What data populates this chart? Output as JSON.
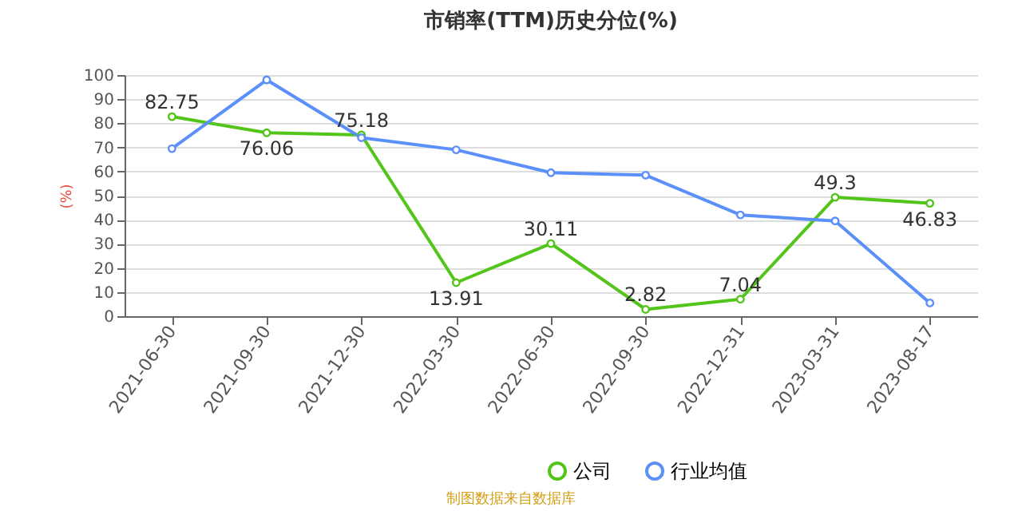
{
  "chart_data": {
    "type": "line",
    "title": "市销率(TTM)历史分位(%)",
    "ylabel": "(%)",
    "categories": [
      "2021-06-30",
      "2021-09-30",
      "2021-12-30",
      "2022-03-30",
      "2022-06-30",
      "2022-09-30",
      "2022-12-31",
      "2023-03-31",
      "2023-08-17"
    ],
    "series": [
      {
        "name": "公司",
        "color": "#52c41a",
        "values": [
          82.75,
          76.06,
          75.18,
          13.91,
          30.11,
          2.82,
          7.04,
          49.3,
          46.83
        ],
        "value_labels": [
          "82.75",
          "76.06",
          "75.18",
          "13.91",
          "30.11",
          "2.82",
          "7.04",
          "49.3",
          "46.83"
        ]
      },
      {
        "name": "行业均值",
        "color": "#5b8ff9",
        "values": [
          69.5,
          98,
          74,
          69,
          59.5,
          58.5,
          42,
          39.5,
          5.5
        ]
      }
    ],
    "ylim": [
      0,
      100
    ],
    "yticks": [
      0,
      10,
      20,
      30,
      40,
      50,
      60,
      70,
      80,
      90,
      100
    ],
    "grid": "y",
    "legend": "bottom",
    "marker": "circle",
    "line_style": "solid",
    "annotations": [
      "制图数据来自数据库"
    ]
  }
}
